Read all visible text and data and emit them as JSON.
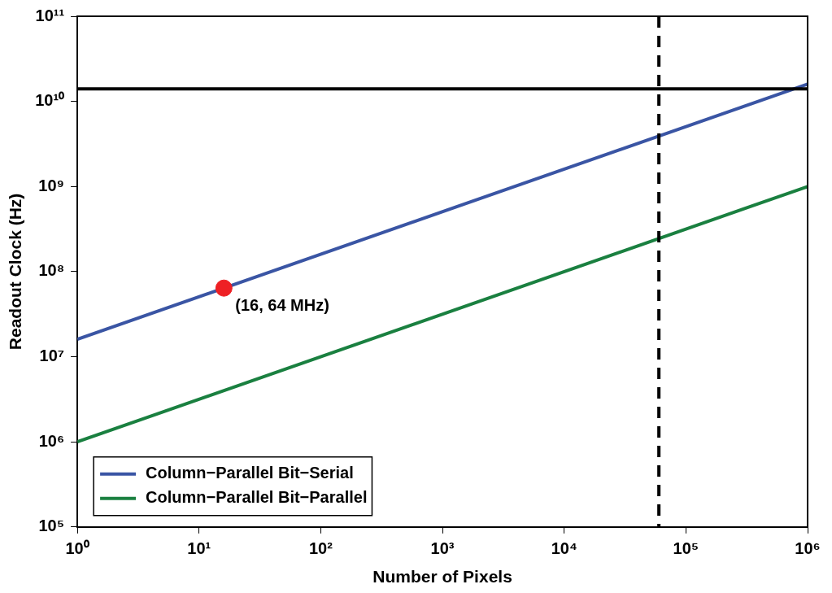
{
  "chart_data": {
    "type": "line",
    "xlabel": "Number of Pixels",
    "ylabel": "Readout Clock (Hz)",
    "log": "xy",
    "grid": false,
    "legend": "bottom left",
    "marker": "none",
    "line_style": "solid",
    "xlim": [
      1,
      1000000
    ],
    "ylim": [
      100000,
      100000000000
    ],
    "xticks": [
      {
        "value": 1,
        "label": "10⁰"
      },
      {
        "value": 10,
        "label": "10¹"
      },
      {
        "value": 100,
        "label": "10²"
      },
      {
        "value": 1000,
        "label": "10³"
      },
      {
        "value": 10000,
        "label": "10⁴"
      },
      {
        "value": 100000,
        "label": "10⁵"
      },
      {
        "value": 1000000,
        "label": "10⁶"
      }
    ],
    "yticks": [
      {
        "value": 100000,
        "label": "10⁵"
      },
      {
        "value": 1000000,
        "label": "10⁶"
      },
      {
        "value": 10000000,
        "label": "10⁷"
      },
      {
        "value": 100000000,
        "label": "10⁸"
      },
      {
        "value": 1000000000,
        "label": "10⁹"
      },
      {
        "value": 10000000000,
        "label": "10¹⁰"
      },
      {
        "value": 100000000000,
        "label": "10¹¹"
      }
    ],
    "series": [
      {
        "name": "Column−Parallel Bit−Serial",
        "color": "#3a55a4",
        "x": [
          1,
          1000000
        ],
        "values": [
          16000000,
          16000000000
        ]
      },
      {
        "name": "Column−Parallel Bit−Parallel",
        "color": "#1a8040",
        "x": [
          1,
          1000000
        ],
        "values": [
          1000000,
          1000000000
        ]
      },
      {
        "type": "scatter",
        "color": "#ee2024",
        "marker": "circle",
        "x": [
          16
        ],
        "values": [
          64000000
        ]
      }
    ],
    "ref_lines": [
      {
        "axis": "y",
        "value": 14000000000,
        "color": "#000000",
        "line_style": "solid"
      },
      {
        "axis": "x",
        "value": 60000,
        "color": "#000000",
        "line_style": "dashed"
      }
    ],
    "annotations": [
      {
        "text": "(16, 64 MHz)",
        "x": 16,
        "y": 64000000
      }
    ]
  }
}
